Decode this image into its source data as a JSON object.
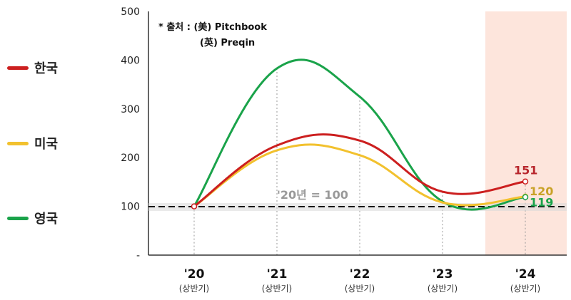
{
  "chart_data": {
    "type": "line",
    "categories": [
      "'20",
      "'21",
      "'22",
      "'23",
      "'24"
    ],
    "sublabels": [
      "(상반기)",
      "(상반기)",
      "(상반기)",
      "(상반기)",
      "(상반기)"
    ],
    "ylim": [
      0,
      500
    ],
    "yticks": [
      "-",
      "100",
      "200",
      "300",
      "400",
      "500"
    ],
    "series": [
      {
        "name": "한국",
        "color": "#cc1f1f",
        "values": [
          100,
          225,
          235,
          130,
          151
        ],
        "end_label": "151"
      },
      {
        "name": "미국",
        "color": "#f2c12e",
        "values": [
          100,
          215,
          205,
          108,
          120
        ],
        "end_label": "120"
      },
      {
        "name": "영국",
        "color": "#1aa34a",
        "values": [
          100,
          383,
          325,
          110,
          119
        ],
        "end_label": "119"
      }
    ],
    "baseline": {
      "value": 100,
      "label": "'20년 = 100"
    },
    "source_note": [
      "* 출처 : (美) Pitchbook",
      "(英) Preqin"
    ],
    "highlight_category": "'24",
    "highlight_color": "#fde5dc",
    "label_colors": {
      "한국": "#b8262c",
      "미국": "#c9a227",
      "영국": "#1aa34a"
    }
  }
}
